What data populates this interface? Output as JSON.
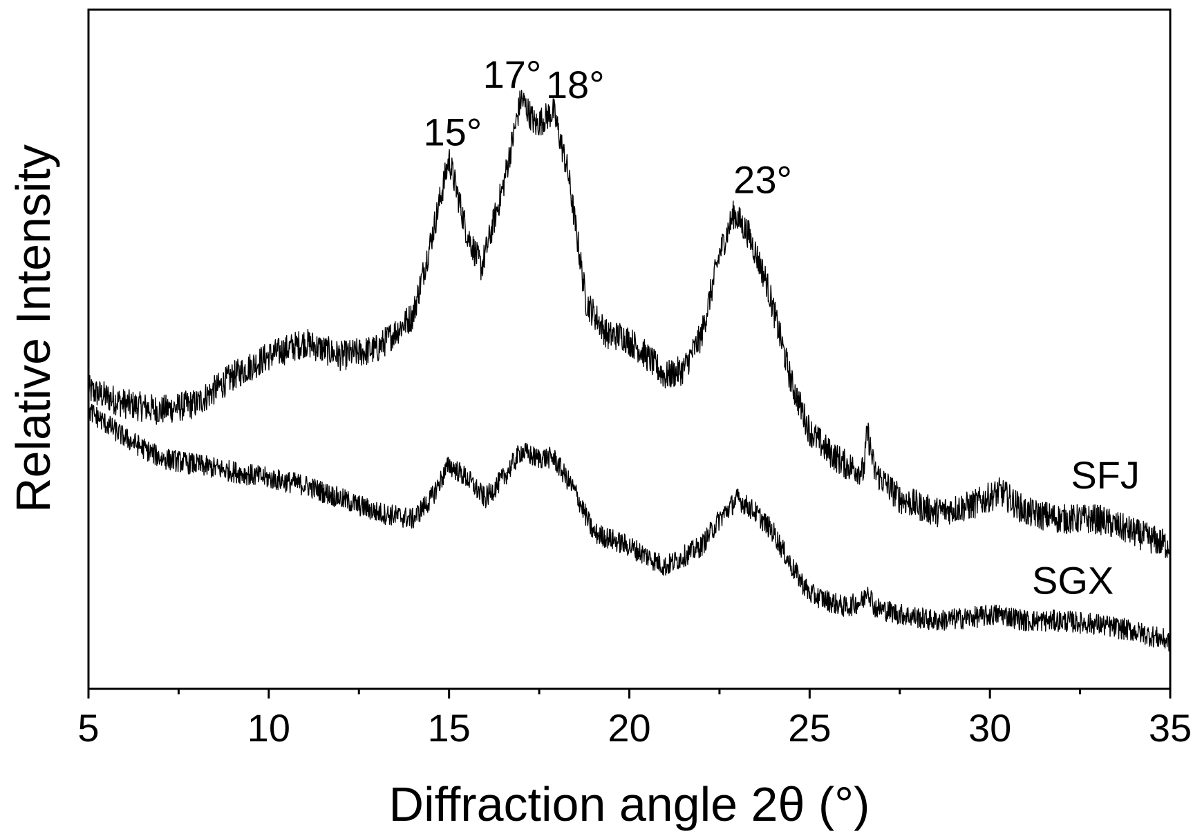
{
  "chart_data": {
    "type": "line",
    "title": "",
    "xlabel": "Diffraction angle 2θ (°)",
    "ylabel": "Relative Intensity",
    "xlim": [
      5,
      35
    ],
    "ylim": [
      0,
      100
    ],
    "x_ticks": [
      "5",
      "10",
      "15",
      "20",
      "25",
      "30",
      "35"
    ],
    "y_ticks": [],
    "grid": false,
    "legend": "none",
    "series": [
      {
        "name": "SFJ",
        "color": "#000000",
        "points": [
          [
            5,
            44
          ],
          [
            6,
            42
          ],
          [
            7,
            41
          ],
          [
            8,
            42
          ],
          [
            9,
            46
          ],
          [
            10,
            49
          ],
          [
            11,
            51
          ],
          [
            12,
            49
          ],
          [
            13,
            50
          ],
          [
            14,
            55
          ],
          [
            14.5,
            66
          ],
          [
            15,
            78
          ],
          [
            15.5,
            67
          ],
          [
            15.9,
            62
          ],
          [
            16.5,
            74
          ],
          [
            17,
            87
          ],
          [
            17.4,
            83
          ],
          [
            17.9,
            85
          ],
          [
            18.3,
            76
          ],
          [
            18.8,
            57
          ],
          [
            19.4,
            52
          ],
          [
            19.8,
            52
          ],
          [
            20.3,
            50
          ],
          [
            21,
            46
          ],
          [
            21.5,
            47
          ],
          [
            22,
            52
          ],
          [
            22.5,
            64
          ],
          [
            22.9,
            70
          ],
          [
            23.3,
            67
          ],
          [
            23.8,
            60
          ],
          [
            24.5,
            45
          ],
          [
            25,
            38
          ],
          [
            25.5,
            35
          ],
          [
            26,
            33
          ],
          [
            26.5,
            32
          ],
          [
            26.6,
            38
          ],
          [
            26.8,
            32
          ],
          [
            27.5,
            28
          ],
          [
            28.5,
            26
          ],
          [
            29.5,
            27
          ],
          [
            30.3,
            29
          ],
          [
            31,
            26
          ],
          [
            32,
            25
          ],
          [
            33,
            25
          ],
          [
            34,
            23
          ],
          [
            35,
            21
          ]
        ]
      },
      {
        "name": "SGX",
        "color": "#000000",
        "points": [
          [
            5,
            41
          ],
          [
            6,
            37
          ],
          [
            7,
            34
          ],
          [
            8,
            33
          ],
          [
            9,
            32
          ],
          [
            10,
            31
          ],
          [
            11,
            30
          ],
          [
            12,
            28
          ],
          [
            13,
            26
          ],
          [
            14,
            25
          ],
          [
            14.5,
            28
          ],
          [
            15,
            33
          ],
          [
            15.5,
            31
          ],
          [
            16,
            28
          ],
          [
            16.5,
            31
          ],
          [
            17,
            35
          ],
          [
            17.4,
            34
          ],
          [
            17.9,
            34
          ],
          [
            18.5,
            29
          ],
          [
            19,
            23
          ],
          [
            20,
            21
          ],
          [
            21,
            18
          ],
          [
            22,
            21
          ],
          [
            22.5,
            25
          ],
          [
            23,
            28
          ],
          [
            23.5,
            26
          ],
          [
            24,
            23
          ],
          [
            24.5,
            18
          ],
          [
            25,
            14
          ],
          [
            26,
            12
          ],
          [
            26.5,
            13
          ],
          [
            26.6,
            15
          ],
          [
            26.8,
            12
          ],
          [
            27.5,
            11
          ],
          [
            28.5,
            10
          ],
          [
            29.5,
            10.5
          ],
          [
            30.3,
            11
          ],
          [
            31,
            10
          ],
          [
            32,
            10
          ],
          [
            33,
            9.5
          ],
          [
            34,
            8.5
          ],
          [
            35,
            7
          ]
        ]
      }
    ],
    "annotations": [
      {
        "text": "15°",
        "x": 15.1,
        "y": 80
      },
      {
        "text": "17°",
        "x": 16.75,
        "y": 88.5
      },
      {
        "text": "18°",
        "x": 18.5,
        "y": 87
      },
      {
        "text": "23°",
        "x": 23.7,
        "y": 73
      }
    ],
    "series_labels": [
      {
        "text": "SFJ",
        "x": 33.2,
        "y": 29.5
      },
      {
        "text": "SGX",
        "x": 32.3,
        "y": 14
      }
    ]
  }
}
